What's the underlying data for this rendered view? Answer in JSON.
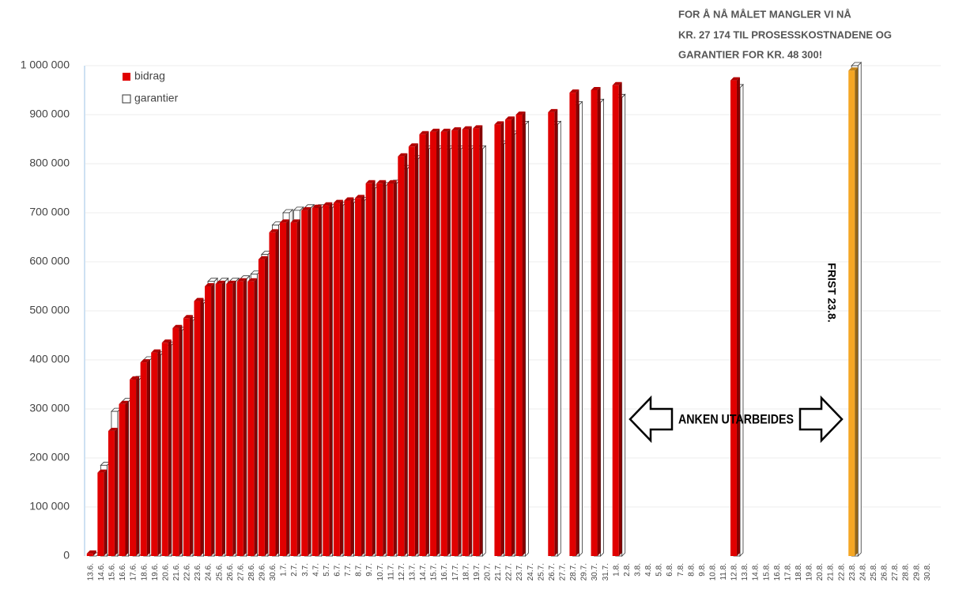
{
  "chart_data": {
    "type": "bar3d",
    "categories": [
      "13.6.",
      "14.6.",
      "15.6.",
      "16.6.",
      "17.6.",
      "18.6.",
      "19.6.",
      "20.6.",
      "21.6.",
      "22.6.",
      "23.6.",
      "24.6.",
      "25.6.",
      "26.6.",
      "27.6.",
      "28.6.",
      "29.6.",
      "30.6.",
      "1.7.",
      "2.7.",
      "3.7.",
      "4.7.",
      "5.7.",
      "6.7.",
      "7.7.",
      "8.7.",
      "9.7.",
      "10.7.",
      "11.7.",
      "12.7.",
      "13.7.",
      "14.7.",
      "15.7.",
      "16.7.",
      "17.7.",
      "18.7.",
      "19.7.",
      "20.7.",
      "21.7.",
      "22.7.",
      "23.7.",
      "24.7.",
      "25.7.",
      "26.7.",
      "27.7.",
      "28.7.",
      "29.7.",
      "30.7.",
      "31.7.",
      "1.8.",
      "2.8.",
      "3.8.",
      "4.8.",
      "5.8.",
      "6.8.",
      "7.8.",
      "8.8.",
      "9.8.",
      "10.8.",
      "11.8.",
      "12.8.",
      "13.8.",
      "14.8.",
      "15.8.",
      "16.8.",
      "17.8.",
      "18.8.",
      "19.8.",
      "20.8.",
      "21.8.",
      "22.8.",
      "23.8.",
      "24.8.",
      "25.8.",
      "26.8.",
      "27.8.",
      "28.8.",
      "29.8.",
      "30.8."
    ],
    "series": [
      {
        "name": "garantier",
        "color": "#ffffff",
        "stroke": "#333333",
        "values": [
          0,
          185000,
          295000,
          315000,
          360000,
          400000,
          410000,
          430000,
          460000,
          480000,
          515000,
          560000,
          560000,
          560000,
          565000,
          575000,
          615000,
          675000,
          700000,
          705000,
          710000,
          710000,
          710000,
          715000,
          720000,
          725000,
          750000,
          755000,
          760000,
          790000,
          810000,
          830000,
          830000,
          830000,
          830000,
          830000,
          830000,
          null,
          840000,
          860000,
          880000,
          null,
          null,
          880000,
          null,
          920000,
          null,
          925000,
          null,
          935000,
          null,
          null,
          null,
          null,
          null,
          null,
          null,
          null,
          null,
          null,
          955000,
          null,
          null,
          null,
          null,
          null,
          null,
          null,
          null,
          null,
          null,
          1000000,
          null,
          null,
          null,
          null,
          null,
          null,
          null
        ]
      },
      {
        "name": "bidrag",
        "color": "#e00000",
        "highlight_category": "23.8.",
        "highlight_color": "#f5a623",
        "values": [
          5000,
          170000,
          255000,
          310000,
          360000,
          395000,
          415000,
          435000,
          465000,
          485000,
          520000,
          550000,
          555000,
          555000,
          560000,
          560000,
          605000,
          660000,
          680000,
          680000,
          705000,
          710000,
          715000,
          720000,
          725000,
          730000,
          760000,
          760000,
          760000,
          815000,
          835000,
          860000,
          865000,
          865000,
          868000,
          870000,
          872000,
          null,
          880000,
          890000,
          900000,
          null,
          null,
          905000,
          null,
          945000,
          null,
          950000,
          null,
          960000,
          null,
          null,
          null,
          null,
          null,
          null,
          null,
          null,
          null,
          null,
          970000,
          null,
          null,
          null,
          null,
          null,
          null,
          null,
          null,
          null,
          null,
          990000,
          null,
          null,
          null,
          null,
          null,
          null,
          null
        ]
      }
    ],
    "legend_order": [
      "bidrag",
      "garantier"
    ],
    "ylim": [
      0,
      1000000
    ],
    "yticks": [
      0,
      {
        "value": 100000,
        "label": "100 000"
      },
      {
        "value": 200000,
        "label": "200 000"
      },
      {
        "value": 300000,
        "label": "300 000"
      },
      {
        "value": 400000,
        "label": "400 000"
      },
      {
        "value": 500000,
        "label": "500 000"
      },
      {
        "value": 600000,
        "label": "600 000"
      },
      {
        "value": 700000,
        "label": "700 000"
      },
      {
        "value": 800000,
        "label": "800 000"
      },
      {
        "value": 900000,
        "label": "900 000"
      },
      {
        "value": 1000000,
        "label": "1 000 000"
      }
    ],
    "grid": true,
    "annotations": {
      "goal": [
        "FOR Å NÅ MÅLET MANGLER VI NÅ",
        "KR. 27 174 TIL PROSESSKOSTNADENE OG",
        "GARANTIER FOR KR. 48 300!"
      ],
      "appeal": "ANKEN UTARBEIDES",
      "deadline": "FRIST 23.8."
    }
  }
}
